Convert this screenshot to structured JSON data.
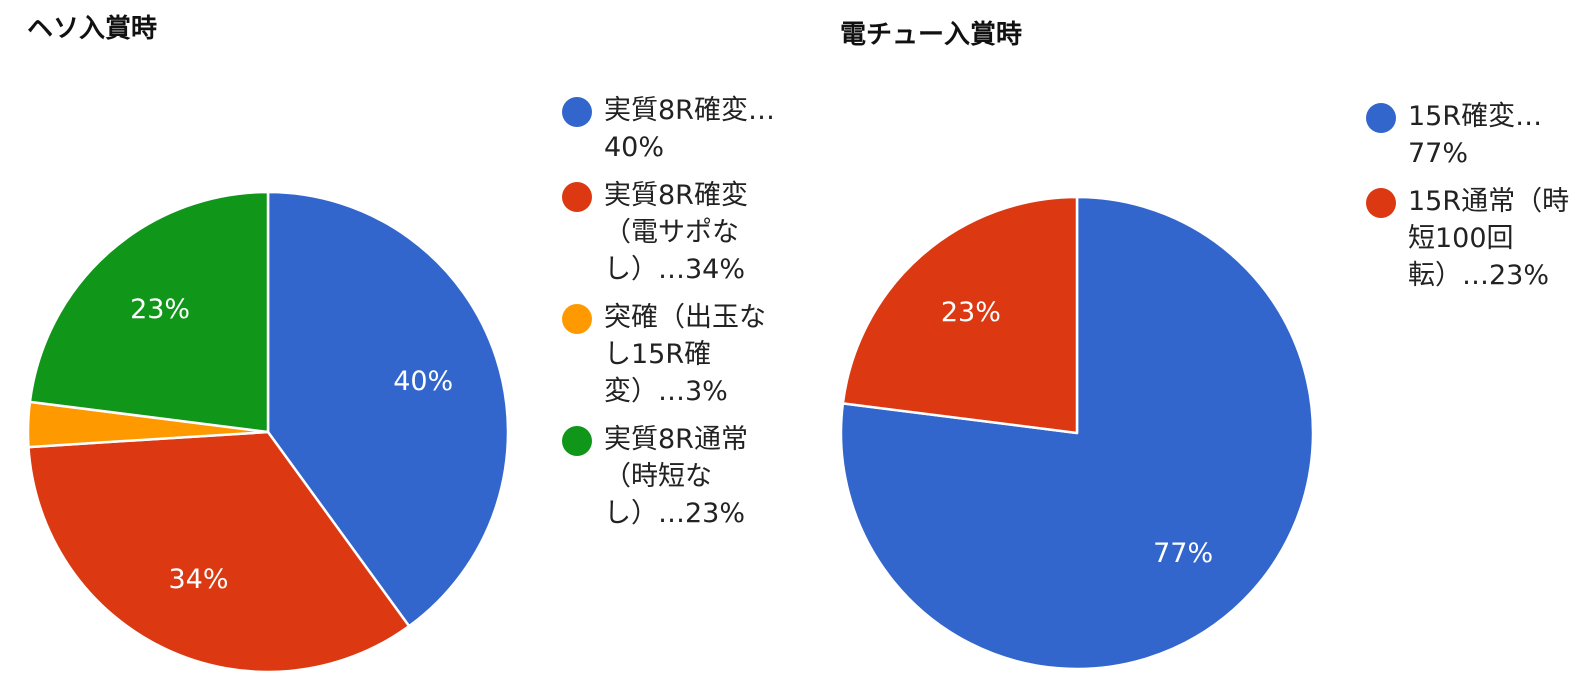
{
  "chart_data": [
    {
      "type": "pie",
      "title": "ヘソ入賞時",
      "slices": [
        {
          "label": "実質8R確変…",
          "value": 40,
          "percent_label": "40%",
          "color": "#3366cc",
          "legend_lines": [
            "実質8R確変…",
            "40%"
          ]
        },
        {
          "label": "実質8R確変（電サポなし）",
          "value": 34,
          "percent_label": "34%",
          "color": "#dc3912",
          "legend_lines": [
            "実質8R確変",
            "（電サポな",
            "し）…34%"
          ]
        },
        {
          "label": "突確（出玉なし15R確変）",
          "value": 3,
          "percent_label": "",
          "color": "#ff9900",
          "legend_lines": [
            "突確（出玉な",
            "し15R確",
            "変）…3%"
          ]
        },
        {
          "label": "実質8R通常（時短なし）",
          "value": 23,
          "percent_label": "23%",
          "color": "#109618",
          "legend_lines": [
            "実質8R通常",
            "（時短な",
            "し）…23%"
          ]
        }
      ]
    },
    {
      "type": "pie",
      "title": "電チュー入賞時",
      "slices": [
        {
          "label": "15R確変…",
          "value": 77,
          "percent_label": "77%",
          "color": "#3366cc",
          "legend_lines": [
            "15R確変…",
            "77%"
          ]
        },
        {
          "label": "15R通常（時短100回転）",
          "value": 23,
          "percent_label": "23%",
          "color": "#dc3912",
          "legend_lines": [
            "15R通常（時",
            "短100回",
            "転）…23%"
          ]
        }
      ]
    }
  ]
}
